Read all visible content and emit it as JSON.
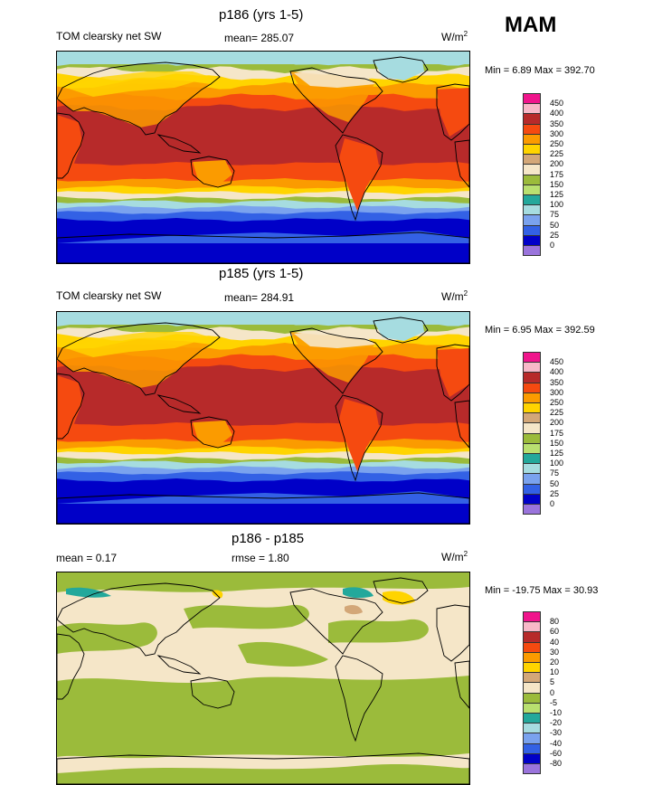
{
  "season": "MAM",
  "colors": {
    "ocean_ice": "#a6dce0",
    "mid_pink": "#f9c4bc"
  },
  "panels": [
    {
      "title": "p186 (yrs 1-5)",
      "left_label": "TOM clearsky net SW",
      "mean_label": "mean= 285.07",
      "units": "W/m",
      "units_sup": "2",
      "minmax": "Min =   6.89 Max = 392.70",
      "chart_data": {
        "type": "heatmap",
        "field": "TOM clearsky net SW",
        "mean": 285.07,
        "min": 6.89,
        "max": 392.7,
        "colorbar_levels": [
          "450",
          "400",
          "350",
          "300",
          "250",
          "225",
          "200",
          "175",
          "150",
          "125",
          "100",
          "75",
          "50",
          "25",
          "0"
        ],
        "colorbar_colors": [
          "#f0158c",
          "#f8b8c8",
          "#b72a2a",
          "#f54a10",
          "#fb9b00",
          "#ffd400",
          "#d3a778",
          "#f5e6c8",
          "#9bbb3b",
          "#b9e070",
          "#23a89b",
          "#a6dce0",
          "#7aa2ee",
          "#3361e5",
          "#0000c8",
          "#9a74dc"
        ]
      }
    },
    {
      "title": "p185 (yrs 1-5)",
      "left_label": "TOM clearsky net SW",
      "mean_label": "mean= 284.91",
      "units": "W/m",
      "units_sup": "2",
      "minmax": "Min =   6.95 Max = 392.59",
      "chart_data": {
        "type": "heatmap",
        "field": "TOM clearsky net SW",
        "mean": 284.91,
        "min": 6.95,
        "max": 392.59,
        "colorbar_levels": [
          "450",
          "400",
          "350",
          "300",
          "250",
          "225",
          "200",
          "175",
          "150",
          "125",
          "100",
          "75",
          "50",
          "25",
          "0"
        ],
        "colorbar_colors": [
          "#f0158c",
          "#f8b8c8",
          "#b72a2a",
          "#f54a10",
          "#fb9b00",
          "#ffd400",
          "#d3a778",
          "#f5e6c8",
          "#9bbb3b",
          "#b9e070",
          "#23a89b",
          "#a6dce0",
          "#7aa2ee",
          "#3361e5",
          "#0000c8",
          "#9a74dc"
        ]
      }
    },
    {
      "title": "p186 - p185",
      "left_label": "mean =   0.17",
      "mean_label": "rmse =   1.80",
      "units": "W/m",
      "units_sup": "2",
      "minmax": "Min = -19.75 Max =  30.93",
      "chart_data": {
        "type": "heatmap",
        "field": "difference p186 - p185",
        "mean": 0.17,
        "rmse": 1.8,
        "min": -19.75,
        "max": 30.93,
        "colorbar_levels": [
          "80",
          "60",
          "40",
          "30",
          "20",
          "10",
          "5",
          "0",
          "-5",
          "-10",
          "-20",
          "-30",
          "-40",
          "-60",
          "-80"
        ],
        "colorbar_colors": [
          "#f0158c",
          "#f8b8c8",
          "#b72a2a",
          "#f54a10",
          "#fb9b00",
          "#ffd400",
          "#d3a778",
          "#f5e6c8",
          "#9bbb3b",
          "#b9e070",
          "#23a89b",
          "#a6dce0",
          "#7aa2ee",
          "#3361e5",
          "#0000c8",
          "#9a74dc"
        ]
      }
    }
  ]
}
